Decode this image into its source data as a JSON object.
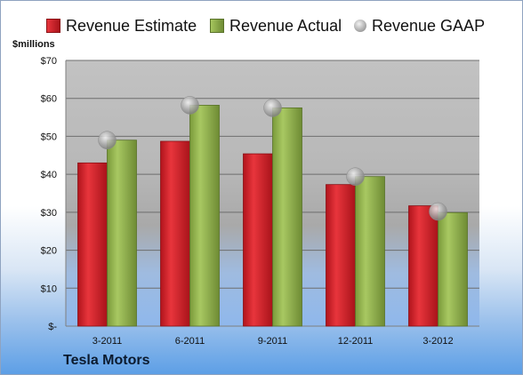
{
  "chart_data": {
    "type": "bar",
    "title": "",
    "ylabel": "$millions",
    "categories": [
      "3-2011",
      "6-2011",
      "9-2011",
      "12-2011",
      "3-2012"
    ],
    "series": [
      {
        "name": "Revenue Estimate",
        "kind": "bar",
        "color": "#cc1f26",
        "values": [
          43,
          48.7,
          45.4,
          37.3,
          31.7
        ]
      },
      {
        "name": "Revenue Actual",
        "kind": "bar",
        "color": "#8aab45",
        "values": [
          49,
          58.2,
          57.5,
          39.4,
          29.9
        ]
      },
      {
        "name": "Revenue GAAP",
        "kind": "marker",
        "color": "#a9a9a9",
        "values": [
          49,
          58.2,
          57.5,
          39.4,
          30.2
        ]
      }
    ],
    "ylim": [
      0,
      70
    ],
    "yticks": [
      0,
      10,
      20,
      30,
      40,
      50,
      60,
      70
    ],
    "ytick_labels": [
      "$-",
      "$10",
      "$20",
      "$30",
      "$40",
      "$50",
      "$60",
      "$70"
    ],
    "grid": true,
    "legend": "top"
  },
  "footer": {
    "company": "Tesla Motors"
  }
}
